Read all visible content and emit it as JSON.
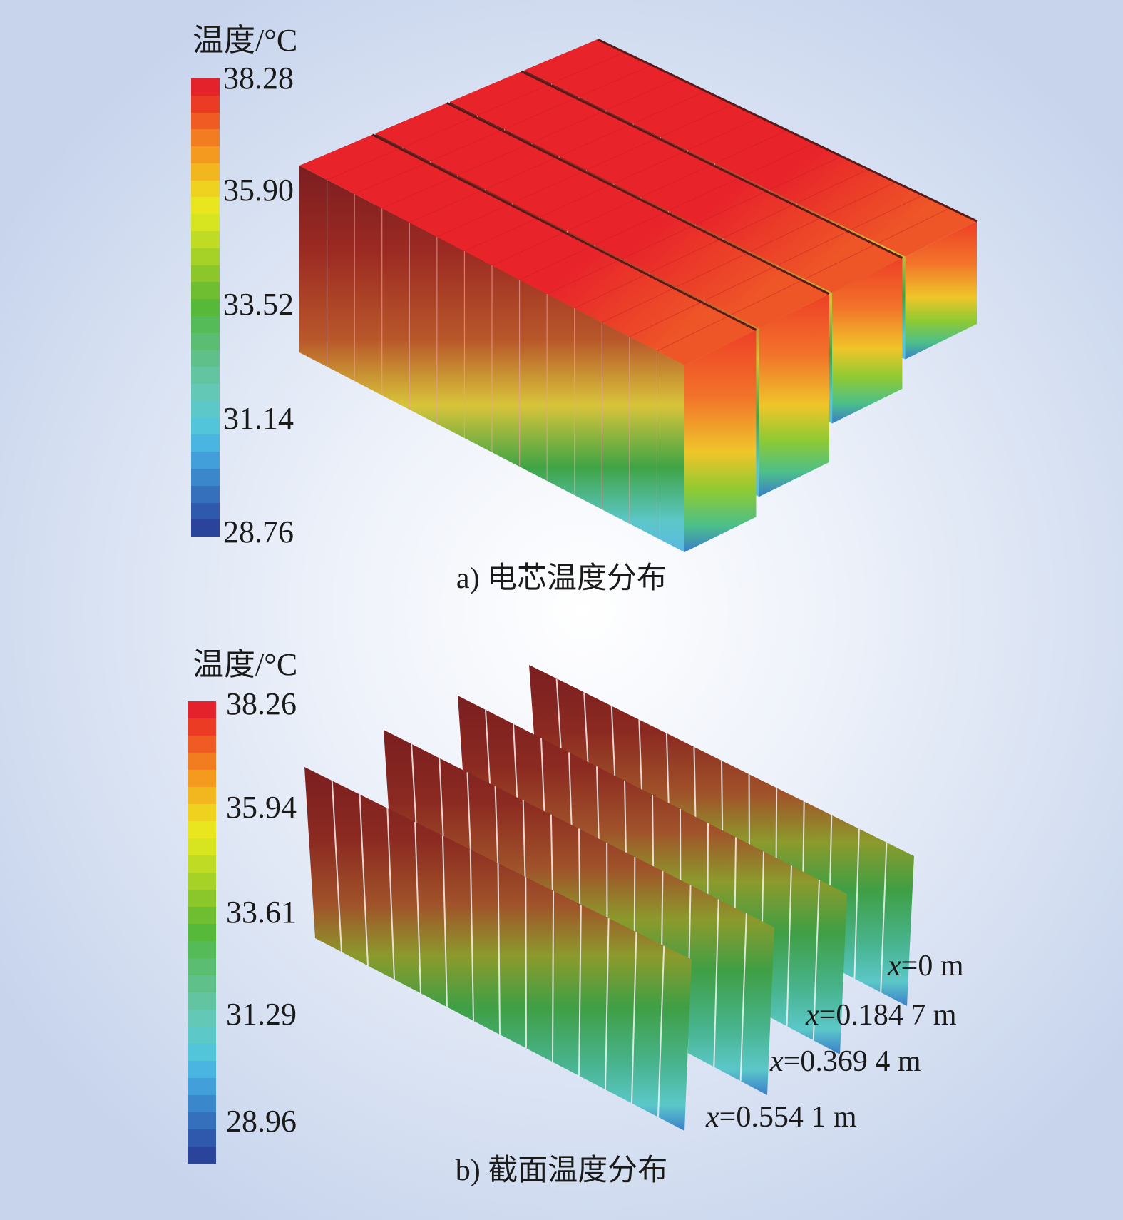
{
  "panel_a": {
    "legend_title": "温度/°C",
    "ticks": [
      "38.28",
      "35.90",
      "33.52",
      "31.14",
      "28.76"
    ],
    "caption": "a) 电芯温度分布"
  },
  "panel_b": {
    "legend_title": "温度/°C",
    "ticks": [
      "38.26",
      "35.94",
      "33.61",
      "31.29",
      "28.96"
    ],
    "caption": "b) 截面温度分布",
    "planes": [
      {
        "var": "x",
        "value": "=0 m"
      },
      {
        "var": "x",
        "value": "=0.184 7 m"
      },
      {
        "var": "x",
        "value": "=0.369 4 m"
      },
      {
        "var": "x",
        "value": "=0.554 1 m"
      }
    ]
  },
  "colors": {
    "colormap": [
      "#e4222c",
      "#eb3b24",
      "#ef5b22",
      "#f27d20",
      "#f49a1f",
      "#f2b61f",
      "#eed21f",
      "#e9e61f",
      "#d6e51f",
      "#bfdb23",
      "#a6d127",
      "#8bc72b",
      "#6fbe31",
      "#56b93a",
      "#55bb58",
      "#5bbd72",
      "#5fc08a",
      "#62c4a1",
      "#63c8b6",
      "#5cc9c8",
      "#52c5da",
      "#4ab5e0",
      "#429fd9",
      "#3b87cc",
      "#3570bd",
      "#2f59ad",
      "#2a449c"
    ],
    "top_red": "#e8242a",
    "top_orange": "#ee5627",
    "dark_red": "#7a1e20",
    "side_green": "#3fa445",
    "side_cyan": "#5cc7c9",
    "side_blue": "#3a7ec9"
  }
}
